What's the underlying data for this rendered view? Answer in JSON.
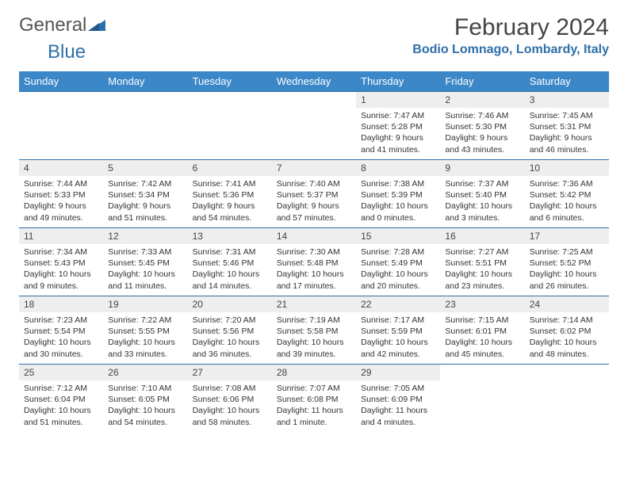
{
  "logo": {
    "text1": "General",
    "text2": "Blue",
    "mark_color": "#2f6fa8"
  },
  "title": "February 2024",
  "location": "Bodio Lomnago, Lombardy, Italy",
  "colors": {
    "header_bg": "#3b87c8",
    "header_text": "#ffffff",
    "daynum_bg": "#eeeeee",
    "border": "#2f6fa8",
    "accent": "#2f6fa8"
  },
  "weekdays": [
    "Sunday",
    "Monday",
    "Tuesday",
    "Wednesday",
    "Thursday",
    "Friday",
    "Saturday"
  ],
  "weeks": [
    [
      null,
      null,
      null,
      null,
      {
        "n": "1",
        "sr": "7:47 AM",
        "ss": "5:28 PM",
        "dl": "9 hours and 41 minutes."
      },
      {
        "n": "2",
        "sr": "7:46 AM",
        "ss": "5:30 PM",
        "dl": "9 hours and 43 minutes."
      },
      {
        "n": "3",
        "sr": "7:45 AM",
        "ss": "5:31 PM",
        "dl": "9 hours and 46 minutes."
      }
    ],
    [
      {
        "n": "4",
        "sr": "7:44 AM",
        "ss": "5:33 PM",
        "dl": "9 hours and 49 minutes."
      },
      {
        "n": "5",
        "sr": "7:42 AM",
        "ss": "5:34 PM",
        "dl": "9 hours and 51 minutes."
      },
      {
        "n": "6",
        "sr": "7:41 AM",
        "ss": "5:36 PM",
        "dl": "9 hours and 54 minutes."
      },
      {
        "n": "7",
        "sr": "7:40 AM",
        "ss": "5:37 PM",
        "dl": "9 hours and 57 minutes."
      },
      {
        "n": "8",
        "sr": "7:38 AM",
        "ss": "5:39 PM",
        "dl": "10 hours and 0 minutes."
      },
      {
        "n": "9",
        "sr": "7:37 AM",
        "ss": "5:40 PM",
        "dl": "10 hours and 3 minutes."
      },
      {
        "n": "10",
        "sr": "7:36 AM",
        "ss": "5:42 PM",
        "dl": "10 hours and 6 minutes."
      }
    ],
    [
      {
        "n": "11",
        "sr": "7:34 AM",
        "ss": "5:43 PM",
        "dl": "10 hours and 9 minutes."
      },
      {
        "n": "12",
        "sr": "7:33 AM",
        "ss": "5:45 PM",
        "dl": "10 hours and 11 minutes."
      },
      {
        "n": "13",
        "sr": "7:31 AM",
        "ss": "5:46 PM",
        "dl": "10 hours and 14 minutes."
      },
      {
        "n": "14",
        "sr": "7:30 AM",
        "ss": "5:48 PM",
        "dl": "10 hours and 17 minutes."
      },
      {
        "n": "15",
        "sr": "7:28 AM",
        "ss": "5:49 PM",
        "dl": "10 hours and 20 minutes."
      },
      {
        "n": "16",
        "sr": "7:27 AM",
        "ss": "5:51 PM",
        "dl": "10 hours and 23 minutes."
      },
      {
        "n": "17",
        "sr": "7:25 AM",
        "ss": "5:52 PM",
        "dl": "10 hours and 26 minutes."
      }
    ],
    [
      {
        "n": "18",
        "sr": "7:23 AM",
        "ss": "5:54 PM",
        "dl": "10 hours and 30 minutes."
      },
      {
        "n": "19",
        "sr": "7:22 AM",
        "ss": "5:55 PM",
        "dl": "10 hours and 33 minutes."
      },
      {
        "n": "20",
        "sr": "7:20 AM",
        "ss": "5:56 PM",
        "dl": "10 hours and 36 minutes."
      },
      {
        "n": "21",
        "sr": "7:19 AM",
        "ss": "5:58 PM",
        "dl": "10 hours and 39 minutes."
      },
      {
        "n": "22",
        "sr": "7:17 AM",
        "ss": "5:59 PM",
        "dl": "10 hours and 42 minutes."
      },
      {
        "n": "23",
        "sr": "7:15 AM",
        "ss": "6:01 PM",
        "dl": "10 hours and 45 minutes."
      },
      {
        "n": "24",
        "sr": "7:14 AM",
        "ss": "6:02 PM",
        "dl": "10 hours and 48 minutes."
      }
    ],
    [
      {
        "n": "25",
        "sr": "7:12 AM",
        "ss": "6:04 PM",
        "dl": "10 hours and 51 minutes."
      },
      {
        "n": "26",
        "sr": "7:10 AM",
        "ss": "6:05 PM",
        "dl": "10 hours and 54 minutes."
      },
      {
        "n": "27",
        "sr": "7:08 AM",
        "ss": "6:06 PM",
        "dl": "10 hours and 58 minutes."
      },
      {
        "n": "28",
        "sr": "7:07 AM",
        "ss": "6:08 PM",
        "dl": "11 hours and 1 minute."
      },
      {
        "n": "29",
        "sr": "7:05 AM",
        "ss": "6:09 PM",
        "dl": "11 hours and 4 minutes."
      },
      null,
      null
    ]
  ],
  "labels": {
    "sunrise": "Sunrise:",
    "sunset": "Sunset:",
    "daylight": "Daylight:"
  }
}
